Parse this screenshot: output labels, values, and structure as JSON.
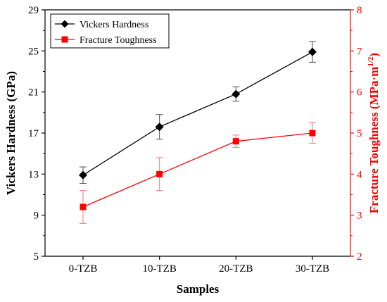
{
  "chart_data": {
    "type": "line",
    "categories": [
      "0-TZB",
      "10-TZB",
      "20-TZB",
      "30-TZB"
    ],
    "xlabel": "Samples",
    "series": [
      {
        "name": "Vickers Hardness",
        "axis": "left",
        "color": "#000000",
        "marker": "diamond",
        "values": [
          12.9,
          17.6,
          20.8,
          24.9
        ],
        "errors": [
          0.8,
          1.2,
          0.7,
          1.0
        ]
      },
      {
        "name": "Fracture Toughness",
        "axis": "right",
        "color": "#ff0000",
        "marker": "square",
        "values": [
          3.2,
          4.0,
          4.8,
          5.0
        ],
        "errors": [
          0.4,
          0.4,
          0.15,
          0.25
        ]
      }
    ],
    "y_left": {
      "label": "Vickers Hardness (GPa)",
      "ylim": [
        5,
        29
      ],
      "ticks": [
        5,
        9,
        13,
        17,
        21,
        25,
        29
      ],
      "color": "#000000"
    },
    "y_right": {
      "label": "Fracture Toughness (MPa·m",
      "label_superscript": "1/2",
      "label_suffix": ")",
      "ylim": [
        2,
        8
      ],
      "ticks": [
        2,
        3,
        4,
        5,
        6,
        7,
        8
      ],
      "color": "#ff0000"
    },
    "grid": false,
    "legend_position": "top-left"
  }
}
